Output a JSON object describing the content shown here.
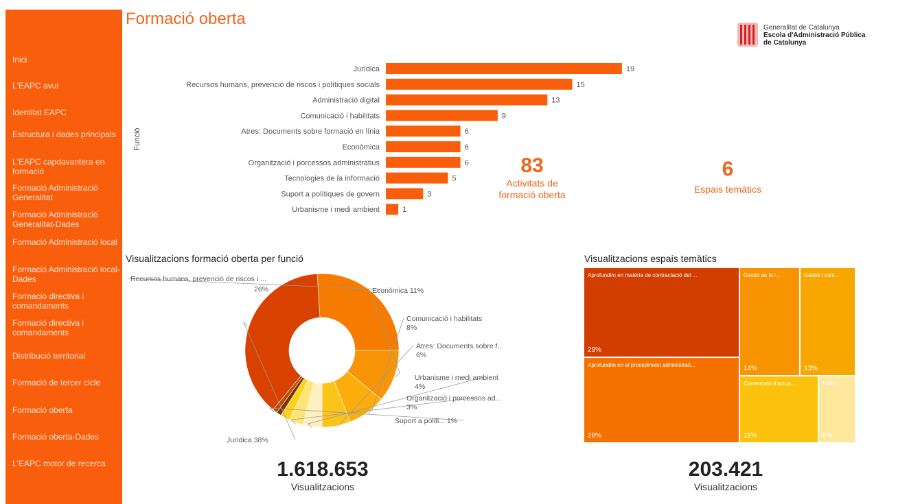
{
  "title": "Formació oberta",
  "logo": {
    "line1": "Generalitat de Catalunya",
    "line2": "Escola d'Administració Pública",
    "line3": "de Catalunya"
  },
  "sidebar": {
    "items": [
      {
        "label": "Inici"
      },
      {
        "label": "L'EAPC avui"
      },
      {
        "label": "Identitat EAPC"
      },
      {
        "label": "Estructura i dades principals"
      },
      {
        "label": "L'EAPC capdavantera en formació"
      },
      {
        "label": "Formació Administració Generalitat"
      },
      {
        "label": "Formació Administració Generalitat-Dades"
      },
      {
        "label": "Formació Administració local"
      },
      {
        "label": "Formació Administració local-Dades"
      },
      {
        "label": "Formació directiva i comandaments"
      },
      {
        "label": "Formació directiva i comandaments"
      },
      {
        "label": "Distribució territorial"
      },
      {
        "label": "Formació de tercer cicle"
      },
      {
        "label": "Formació oberta"
      },
      {
        "label": "Formació oberta-Dades"
      },
      {
        "label": "L'EAPC motor de recerca"
      }
    ]
  },
  "kpis": {
    "activities": {
      "value": "83",
      "label_line1": "Activitats de",
      "label_line2": "formació oberta"
    },
    "spaces": {
      "value": "6",
      "label": "Espais temàtics"
    }
  },
  "donut_title": "Visualitzacions formació oberta per funció",
  "treemap_title": "Visualitzacions espais temàtics",
  "totals": {
    "left": {
      "value": "1.618.653",
      "label": "Visualitzacions"
    },
    "right": {
      "value": "203.421",
      "label": "Visualitzacions"
    }
  },
  "colors": {
    "sidebar": "#f85e0c",
    "bar": "#f85e0c",
    "accent": "#f0651e"
  },
  "chart_data": [
    {
      "type": "bar",
      "orientation": "horizontal",
      "ylabel": "Funció",
      "categories": [
        "Jurídica",
        "Recursos humans, prevenció de riscos i polítiques socials",
        "Administració digital",
        "Comunicació i habilitats",
        "Atres: Documents sobre formació en línia",
        "Econòmica",
        "Organització i porcessos administratius",
        "Tecnologies de la informació",
        "Suport a polítiques de govern",
        "Urbanisme i medi ambient"
      ],
      "values": [
        19,
        15,
        13,
        9,
        6,
        6,
        6,
        5,
        3,
        1
      ],
      "color": "#f85e0c"
    },
    {
      "type": "pie",
      "donut": true,
      "title": "Visualitzacions formació oberta per funció",
      "slices": [
        {
          "label": "Recursos humans, prevenció de riscos i ...",
          "pct_label": "26%",
          "value": 26,
          "color": "#f57c00"
        },
        {
          "label": "Econòmica",
          "pct_label": "11%",
          "value": 11,
          "color": "#f89406"
        },
        {
          "label": "Comunicació i habilitats",
          "pct_label": "8%",
          "value": 8,
          "color": "#fbad0c"
        },
        {
          "label": "Atres: Documents sobre f...",
          "pct_label": "6%",
          "value": 6,
          "color": "#fcc419"
        },
        {
          "label": "Urbanisme i medi ambient",
          "pct_label": "4%",
          "value": 4,
          "color": "#fff0c2"
        },
        {
          "label": "Organització i porcessos ad...",
          "pct_label": "3%",
          "value": 3,
          "color": "#ffe577"
        },
        {
          "label": "",
          "pct_label": "",
          "value": 2,
          "color": "#fbd21c"
        },
        {
          "label": "",
          "pct_label": "",
          "value": 1,
          "color": "#7a3104"
        },
        {
          "label": "Suport a politi...",
          "pct_label": "1%",
          "value": 1,
          "color": "#c24a08"
        },
        {
          "label": "Jurídica",
          "pct_label": "38%",
          "value": 38,
          "color": "#d94100"
        }
      ]
    },
    {
      "type": "treemap",
      "title": "Visualitzacions espais temàtics",
      "cells": [
        {
          "label": "Aprofundim en matèria de contractació del ...",
          "pct_label": "29%",
          "value": 29,
          "color": "#d13e00"
        },
        {
          "label": "Aprofundim en el procediment administrati...",
          "pct_label": "28%",
          "value": 28,
          "color": "#f57100"
        },
        {
          "label": "Gestió de la i...",
          "pct_label": "14%",
          "value": 14,
          "color": "#f79400"
        },
        {
          "label": "Gestió i cont...",
          "pct_label": "13%",
          "value": 13,
          "color": "#f8a600"
        },
        {
          "label": "Comentaris d'actua...",
          "pct_label": "11%",
          "value": 11,
          "color": "#fbc20d"
        },
        {
          "label": "Instruc...",
          "pct_label": "5%",
          "value": 5,
          "color": "#ffe89b"
        }
      ]
    }
  ]
}
